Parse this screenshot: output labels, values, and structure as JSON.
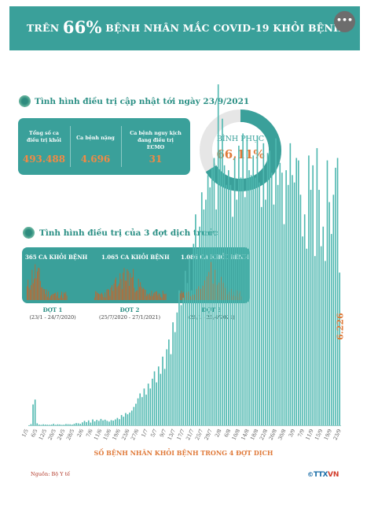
{
  "header": {
    "title_prefix": "TRÊN",
    "title_percent": "66%",
    "title_rest": "BỆNH NHÂN MẮC COVID-19 KHỎI BỆNH",
    "menu_icon": "more-dots-icon",
    "menu_glyph": "•••"
  },
  "section1": {
    "title": "Tình hình điều trị cập nhật tới ngày 23/9/2021"
  },
  "stats": [
    {
      "label": "Tổng số ca điều trị khỏi",
      "value": "493.488"
    },
    {
      "label": "Ca bệnh nặng",
      "value": "4.696"
    },
    {
      "label": "Ca bệnh nguy kịch đang điều trị ECMO",
      "value": "31"
    }
  ],
  "recovery": {
    "label": "BÌNH PHỤC",
    "value": "66,11%",
    "fraction": 0.6611
  },
  "section2": {
    "title": "Tình hình điều trị của 3 đợt dịch trước"
  },
  "waves": [
    {
      "cases": "365 CA KHỎI BỆNH",
      "name": "ĐỢT 1",
      "dates": "(23/1 - 24/7/2020)"
    },
    {
      "cases": "1.065 CA KHỎI BỆNH",
      "name": "ĐỢT 2",
      "dates": "(25/7/2020 - 27/1/2021)"
    },
    {
      "cases": "1.086 CA KHỎI BỆNH",
      "name": "ĐỢT 3",
      "dates": "(28/1 - 26/4/2021)"
    }
  ],
  "colors": {
    "teal": "#3aa09a",
    "orange": "#e07a3a",
    "bar": "#4fb8b0",
    "mini_bar": "#c8642a"
  },
  "chart_data": {
    "type": "bar",
    "xlabel": "SỐ BỆNH NHÂN KHỎI BỆNH TRONG 4 ĐỢT DỊCH",
    "x_ticks": [
      "1/5",
      "6/5",
      "12/5",
      "20/5",
      "24/5",
      "28/5",
      "2/6",
      "7/6",
      "11/6",
      "15/6",
      "19/6",
      "23/6",
      "27/6",
      "1/7",
      "5/7",
      "9/7",
      "13/7",
      "17/7",
      "21/7",
      "25/7",
      "29/7",
      "2/8",
      "6/8",
      "10/8",
      "14/8",
      "18/8",
      "22/8",
      "26/8",
      "30/8",
      "3/9",
      "7/9",
      "11/9",
      "15/9",
      "19/9",
      "23/9"
    ],
    "last_value_label": "6.226",
    "last_value": 6226,
    "ylim": [
      0,
      14000
    ],
    "values": [
      2,
      50,
      850,
      1050,
      80,
      30,
      20,
      40,
      30,
      25,
      20,
      30,
      60,
      20,
      40,
      35,
      20,
      25,
      50,
      45,
      40,
      30,
      60,
      90,
      80,
      60,
      120,
      180,
      130,
      200,
      110,
      240,
      160,
      220,
      180,
      260,
      200,
      230,
      180,
      150,
      210,
      190,
      240,
      300,
      250,
      420,
      350,
      500,
      450,
      520,
      600,
      750,
      880,
      1100,
      1300,
      1150,
      1500,
      1250,
      1700,
      1500,
      1900,
      2200,
      1750,
      2400,
      2100,
      2800,
      2300,
      3100,
      3500,
      2900,
      4200,
      3800,
      4600,
      5500,
      4900,
      5200,
      6300,
      5800,
      6800,
      5500,
      7400,
      8600,
      7200,
      8100,
      9500,
      8800,
      9200,
      10200,
      9700,
      10500,
      10900,
      8800,
      13900,
      11200,
      12500,
      10600,
      9800,
      10400,
      9800,
      8500,
      10900,
      9200,
      11400,
      10100,
      11900,
      9300,
      11800,
      10400,
      10200,
      11000,
      10100,
      11800,
      9900,
      8900,
      11500,
      9200,
      11100,
      11200,
      10300,
      9000,
      11700,
      9800,
      10700,
      10300,
      8200,
      10400,
      9800,
      11500,
      10200,
      9900,
      10900,
      10800,
      9400,
      7700,
      8600,
      7200,
      11000,
      9600,
      10600,
      6900,
      11300,
      9600,
      7300,
      8100,
      6700,
      10800,
      9100,
      7800,
      9400,
      10500,
      10900,
      6226
    ]
  }
}
